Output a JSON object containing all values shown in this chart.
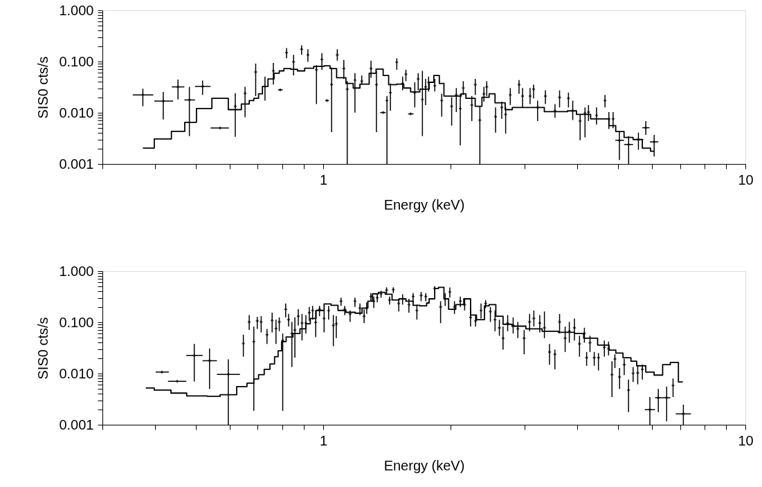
{
  "chart_data": [
    {
      "type": "scatter",
      "xlabel": "Energy (keV)",
      "ylabel": "SIS0 cts/s",
      "log": "xy",
      "grid": false,
      "xlim": [
        0.3,
        10
      ],
      "ylim": [
        0.001,
        1
      ],
      "xticks": [
        {
          "value": 0.3,
          "label": null
        },
        {
          "value": 0.4,
          "label": null
        },
        {
          "value": 0.5,
          "label": null
        },
        {
          "value": 0.6,
          "label": null
        },
        {
          "value": 0.7,
          "label": null
        },
        {
          "value": 0.8,
          "label": null
        },
        {
          "value": 0.9,
          "label": null
        },
        1,
        {
          "value": 2,
          "label": null
        },
        {
          "value": 3,
          "label": null
        },
        {
          "value": 4,
          "label": null
        },
        {
          "value": 5,
          "label": null
        },
        {
          "value": 6,
          "label": null
        },
        {
          "value": 7,
          "label": null
        },
        {
          "value": 8,
          "label": null
        },
        {
          "value": 9,
          "label": null
        },
        10
      ],
      "yticks": [
        {
          "value": 0.001,
          "label": "0.001"
        },
        {
          "value": 0.002,
          "label": null
        },
        {
          "value": 0.003,
          "label": null
        },
        {
          "value": 0.004,
          "label": null
        },
        {
          "value": 0.005,
          "label": null
        },
        {
          "value": 0.006,
          "label": null
        },
        {
          "value": 0.007,
          "label": null
        },
        {
          "value": 0.008,
          "label": null
        },
        {
          "value": 0.009,
          "label": null
        },
        {
          "value": 0.01,
          "label": "0.010"
        },
        {
          "value": 0.02,
          "label": null
        },
        {
          "value": 0.03,
          "label": null
        },
        {
          "value": 0.04,
          "label": null
        },
        {
          "value": 0.05,
          "label": null
        },
        {
          "value": 0.06,
          "label": null
        },
        {
          "value": 0.07,
          "label": null
        },
        {
          "value": 0.08,
          "label": null
        },
        {
          "value": 0.09,
          "label": null
        },
        {
          "value": 0.1,
          "label": "0.100"
        },
        {
          "value": 0.2,
          "label": null
        },
        {
          "value": 0.3,
          "label": null
        },
        {
          "value": 0.4,
          "label": null
        },
        {
          "value": 0.5,
          "label": null
        },
        {
          "value": 0.6,
          "label": null
        },
        {
          "value": 0.7,
          "label": null
        },
        {
          "value": 0.8,
          "label": null
        },
        {
          "value": 0.9,
          "label": null
        },
        {
          "value": 1,
          "label": "1.000"
        }
      ],
      "series": [
        {
          "type": "scatter",
          "color": "#000000",
          "marker": "cross",
          "x": [
            0.374,
            0.418,
            0.453,
            0.482,
            0.518,
            0.57,
            0.619,
            0.653,
            0.692,
            0.728,
            0.762,
            0.791,
            0.819,
            0.851,
            0.889,
            0.92,
            0.964,
            0.993,
            1.021,
            1.047,
            1.08,
            1.119,
            1.14,
            1.189,
            1.234,
            1.298,
            1.337,
            1.387,
            1.416,
            1.443,
            1.494,
            1.542,
            1.57,
            1.611,
            1.648,
            1.679,
            1.718,
            1.748,
            1.777,
            1.838,
            1.909,
            2.015,
            2.067,
            2.112,
            2.147,
            2.249,
            2.292,
            2.35,
            2.403,
            2.44,
            2.56,
            2.648,
            2.705,
            2.774,
            2.91,
            2.966,
            3.09,
            3.15,
            3.22,
            3.36,
            3.54,
            3.63,
            3.81,
            3.9,
            4.06,
            4.17,
            4.25,
            4.44,
            4.65,
            4.75,
            4.86,
            5.03,
            5.29,
            5.58,
            5.81,
            6.08
          ],
          "values": [
            0.0223,
            0.0169,
            0.032,
            0.0178,
            0.0327,
            0.00504,
            0.0134,
            0.024,
            0.0624,
            0.0327,
            0.0657,
            0.028,
            0.149,
            0.099,
            0.174,
            0.135,
            0.0692,
            0.11,
            0.0173,
            0.0355,
            0.135,
            0.0728,
            0.0289,
            0.0435,
            0.0414,
            0.0728,
            0.0355,
            0.0101,
            0.0173,
            0.0248,
            0.097,
            0.0373,
            0.0564,
            0.0095,
            0.0248,
            0.0458,
            0.0182,
            0.032,
            0.0393,
            0.0337,
            0.0173,
            0.0134,
            0.0223,
            0.0121,
            0.0304,
            0.0141,
            0.0355,
            0.0072,
            0.0235,
            0.032,
            0.0084,
            0.0127,
            0.0093,
            0.0223,
            0.0355,
            0.0212,
            0.0212,
            0.0289,
            0.0127,
            0.0212,
            0.0109,
            0.0201,
            0.0191,
            0.0109,
            0.0069,
            0.0098,
            0.0103,
            0.0089,
            0.0173,
            0.0076,
            0.0076,
            0.0029,
            0.0024,
            0.003,
            0.0051,
            0.0027
          ],
          "errors": [
            [
              0.0134,
              0.0295
            ],
            [
              0.0074,
              0.0255
            ],
            [
              0.0182,
              0.0445
            ],
            [
              0.0035,
              0.032
            ],
            [
              0.0223,
              0.0427
            ],
            null,
            [
              0.0034,
              0.024
            ],
            [
              0.0082,
              0.032
            ],
            [
              0.0212,
              0.0913
            ],
            [
              0.0173,
              0.0508
            ],
            [
              0.0355,
              0.0942
            ],
            null,
            [
              0.116,
              0.184
            ],
            [
              0.0535,
              0.135
            ],
            [
              0.135,
              0.207
            ],
            [
              0.099,
              0.174
            ],
            [
              0.0148,
              0.0849
            ],
            [
              0.0692,
              0.146
            ],
            null,
            [
              0.0042,
              0.0766
            ],
            [
              0.104,
              0.174
            ],
            [
              0.0458,
              0.1076
            ],
            [
              0.001,
              0.0414
            ],
            [
              0.0101,
              0.0593
            ],
            [
              0.0355,
              0.0535
            ],
            [
              0.0483,
              0.104
            ],
            [
              0.0042,
              0.0657
            ],
            null,
            [
              0.001,
              0.0212
            ],
            [
              0.0109,
              0.0373
            ],
            [
              0.0692,
              0.116
            ],
            [
              0.0274,
              0.0508
            ],
            [
              0.0414,
              0.0692
            ],
            null,
            [
              0.0127,
              0.0393
            ],
            [
              0.0274,
              0.0593
            ],
            [
              0.0035,
              0.0657
            ],
            [
              0.0141,
              0.0458
            ],
            [
              0.026,
              0.0508
            ],
            [
              0.026,
              0.0458
            ],
            [
              0.0084,
              0.0235
            ],
            [
              0.0056,
              0.0201
            ],
            [
              0.0103,
              0.0304
            ],
            [
              0.0023,
              0.0235
            ],
            [
              0.0223,
              0.0414
            ],
            [
              0.0069,
              0.0212
            ],
            [
              0.0223,
              0.0458
            ],
            [
              0.001,
              0.0134
            ],
            [
              0.0164,
              0.032
            ],
            [
              0.0212,
              0.0414
            ],
            [
              0.0041,
              0.0127
            ],
            [
              0.0076,
              0.0164
            ],
            [
              0.0039,
              0.0127
            ],
            [
              0.0141,
              0.0304
            ],
            [
              0.0235,
              0.0435
            ],
            [
              0.0127,
              0.0304
            ],
            [
              0.0148,
              0.0304
            ],
            [
              0.0191,
              0.0355
            ],
            [
              0.0069,
              0.0173
            ],
            [
              0.0148,
              0.0274
            ],
            [
              0.008,
              0.0148
            ],
            [
              0.0127,
              0.0274
            ],
            [
              0.0127,
              0.0248
            ],
            [
              0.0072,
              0.0173
            ],
            [
              0.0029,
              0.0093
            ],
            [
              0.0033,
              0.0127
            ],
            [
              0.0069,
              0.0141
            ],
            [
              0.0059,
              0.0127
            ],
            [
              0.0127,
              0.0223
            ],
            [
              0.0048,
              0.0103
            ],
            [
              0.005,
              0.0103
            ],
            [
              0.0012,
              0.0043
            ],
            [
              0.001,
              0.0035
            ],
            [
              0.0019,
              0.0041
            ],
            [
              0.0037,
              0.0069
            ],
            [
              0.0014,
              0.0037
            ]
          ],
          "xerrors": [
            [
              0.354,
              0.396
            ],
            [
              0.398,
              0.441
            ],
            [
              0.438,
              0.469
            ],
            [
              0.469,
              0.497
            ],
            [
              0.497,
              0.541
            ],
            [
              0.541,
              0.598
            ],
            null,
            null,
            null,
            null,
            null,
            [
              0.782,
              0.802
            ],
            null,
            null,
            null,
            null,
            null,
            null,
            [
              1.012,
              1.031
            ],
            null,
            null,
            null,
            null,
            null,
            null,
            null,
            null,
            [
              1.365,
              1.406
            ],
            null,
            null,
            null,
            null,
            null,
            [
              1.589,
              1.637
            ],
            null,
            null,
            null,
            null,
            null,
            null,
            null,
            null,
            null,
            null,
            null,
            null,
            null,
            null,
            null,
            null,
            null,
            null,
            null,
            null,
            null,
            null,
            null,
            null,
            null,
            null,
            null,
            null,
            null,
            null,
            null,
            null,
            null,
            null,
            null,
            null,
            null,
            [
              4.92,
              5.16
            ],
            [
              5.16,
              5.42
            ],
            [
              5.42,
              5.73
            ],
            [
              5.7,
              5.93
            ],
            [
              5.94,
              6.22
            ]
          ]
        },
        {
          "type": "step",
          "color": "#000000",
          "marker": "none",
          "x": [
            0.374,
            0.398,
            0.437,
            0.47,
            0.501,
            0.545,
            0.596,
            0.64,
            0.668,
            0.685,
            0.703,
            0.718,
            0.74,
            0.765,
            0.787,
            0.807,
            0.838,
            0.869,
            0.904,
            0.95,
            1.005,
            1.038,
            1.076,
            1.132,
            1.178,
            1.222,
            1.285,
            1.334,
            1.387,
            1.429,
            1.494,
            1.552,
            1.611,
            1.694,
            1.782,
            1.828,
            1.884,
            1.932,
            2.123,
            2.178,
            2.291,
            2.377,
            2.472,
            2.553,
            2.698,
            2.805,
            3.34,
            3.79,
            3.98,
            4.3,
            4.75,
            4.93,
            5.16,
            5.42,
            5.7,
            5.96,
            6.08
          ],
          "values": [
            0.00204,
            0.00308,
            0.00432,
            0.00651,
            0.0121,
            0.0191,
            0.0115,
            0.0148,
            0.0173,
            0.0191,
            0.0235,
            0.0327,
            0.0458,
            0.0593,
            0.0657,
            0.0728,
            0.0706,
            0.0657,
            0.0743,
            0.0807,
            0.0824,
            0.0728,
            0.0483,
            0.0373,
            0.0304,
            0.0362,
            0.0593,
            0.0713,
            0.0535,
            0.0355,
            0.0362,
            0.0304,
            0.0255,
            0.0289,
            0.0393,
            0.0535,
            0.0373,
            0.0212,
            0.0235,
            0.0191,
            0.0134,
            0.0201,
            0.0235,
            0.0156,
            0.0115,
            0.0127,
            0.0105,
            0.0109,
            0.0093,
            0.0076,
            0.0056,
            0.0043,
            0.0033,
            0.003,
            0.00204,
            0.00177,
            0.00177
          ]
        }
      ]
    },
    {
      "type": "scatter",
      "xlabel": "Energy (keV)",
      "ylabel": "SIS0 cts/s",
      "log": "xy",
      "grid": false,
      "xlim": [
        0.3,
        10
      ],
      "ylim": [
        0.001,
        1
      ],
      "xticks": [
        {
          "value": 0.3,
          "label": null
        },
        {
          "value": 0.4,
          "label": null
        },
        {
          "value": 0.5,
          "label": null
        },
        {
          "value": 0.6,
          "label": null
        },
        {
          "value": 0.7,
          "label": null
        },
        {
          "value": 0.8,
          "label": null
        },
        {
          "value": 0.9,
          "label": null
        },
        1,
        {
          "value": 2,
          "label": null
        },
        {
          "value": 3,
          "label": null
        },
        {
          "value": 4,
          "label": null
        },
        {
          "value": 5,
          "label": null
        },
        {
          "value": 6,
          "label": null
        },
        {
          "value": 7,
          "label": null
        },
        {
          "value": 8,
          "label": null
        },
        {
          "value": 9,
          "label": null
        },
        10
      ],
      "yticks": [
        {
          "value": 0.001,
          "label": "0.001"
        },
        {
          "value": 0.002,
          "label": null
        },
        {
          "value": 0.003,
          "label": null
        },
        {
          "value": 0.004,
          "label": null
        },
        {
          "value": 0.005,
          "label": null
        },
        {
          "value": 0.006,
          "label": null
        },
        {
          "value": 0.007,
          "label": null
        },
        {
          "value": 0.008,
          "label": null
        },
        {
          "value": 0.009,
          "label": null
        },
        {
          "value": 0.01,
          "label": "0.010"
        },
        {
          "value": 0.02,
          "label": null
        },
        {
          "value": 0.03,
          "label": null
        },
        {
          "value": 0.04,
          "label": null
        },
        {
          "value": 0.05,
          "label": null
        },
        {
          "value": 0.06,
          "label": null
        },
        {
          "value": 0.07,
          "label": null
        },
        {
          "value": 0.08,
          "label": null
        },
        {
          "value": 0.09,
          "label": null
        },
        {
          "value": 0.1,
          "label": "0.100"
        },
        {
          "value": 0.2,
          "label": null
        },
        {
          "value": 0.3,
          "label": null
        },
        {
          "value": 0.4,
          "label": null
        },
        {
          "value": 0.5,
          "label": null
        },
        {
          "value": 0.6,
          "label": null
        },
        {
          "value": 0.7,
          "label": null
        },
        {
          "value": 0.8,
          "label": null
        },
        {
          "value": 0.9,
          "label": null
        },
        {
          "value": 1,
          "label": "1.000"
        }
      ],
      "series": [
        {
          "type": "scatter",
          "color": "#000000",
          "marker": "cross",
          "x": [
            0.415,
            0.451,
            0.495,
            0.538,
            0.596,
            0.647,
            0.668,
            0.685,
            0.698,
            0.713,
            0.736,
            0.757,
            0.773,
            0.787,
            0.802,
            0.815,
            0.828,
            0.843,
            0.857,
            0.873,
            0.891,
            0.91,
            0.927,
            0.944,
            0.96,
            0.98,
            1.005,
            1.03,
            1.057,
            1.074,
            1.102,
            1.125,
            1.158,
            1.189,
            1.222,
            1.25,
            1.268,
            1.297,
            1.318,
            1.343,
            1.371,
            1.413,
            1.436,
            1.466,
            1.51,
            1.542,
            1.596,
            1.633,
            1.667,
            1.706,
            1.75,
            1.837,
            1.897,
            1.945,
            1.995,
            2.046,
            2.113,
            2.163,
            2.234,
            2.296,
            2.365,
            2.425,
            2.489,
            2.553,
            2.614,
            2.667,
            2.735,
            2.818,
            2.891,
            2.992,
            3.083,
            3.155,
            3.258,
            3.342,
            3.436,
            3.538,
            3.63,
            3.742,
            3.828,
            3.936,
            4.047,
            4.156,
            4.207,
            4.285,
            4.385,
            4.487,
            4.634,
            4.742,
            4.831,
            4.909,
            5.035,
            5.164,
            5.287,
            5.42,
            5.559,
            5.701,
            5.94,
            6.22,
            6.51,
            6.74,
            7.13
          ],
          "values": [
            0.0107,
            0.00705,
            0.0226,
            0.0178,
            0.00964,
            0.0387,
            0.102,
            0.0421,
            0.107,
            0.102,
            0.0575,
            0.109,
            0.076,
            0.102,
            0.0443,
            0.18,
            0.113,
            0.0605,
            0.0708,
            0.132,
            0.0966,
            0.0966,
            0.154,
            0.171,
            0.0998,
            0.18,
            0.119,
            0.171,
            0.0871,
            0.0937,
            0.259,
            0.18,
            0.146,
            0.259,
            0.19,
            0.132,
            0.19,
            0.319,
            0.259,
            0.303,
            0.361,
            0.427,
            0.273,
            0.436,
            0.234,
            0.288,
            0.222,
            0.319,
            0.171,
            0.336,
            0.319,
            0.459,
            0.2,
            0.288,
            0.393,
            0.2,
            0.259,
            0.222,
            0.125,
            0.107,
            0.171,
            0.234,
            0.163,
            0.113,
            0.0785,
            0.0492,
            0.0966,
            0.0871,
            0.0745,
            0.0492,
            0.102,
            0.119,
            0.0966,
            0.0785,
            0.0264,
            0.0238,
            0.102,
            0.0492,
            0.0672,
            0.0785,
            0.0379,
            0.0605,
            0.0204,
            0.04,
            0.0204,
            0.0204,
            0.0325,
            0.0308,
            0.00953,
            0.0193,
            0.00859,
            0.0149,
            0.00475,
            0.0101,
            0.0103,
            0.0121,
            0.00197,
            0.00337,
            0.00337,
            0.00585,
            0.00163
          ],
          "errors": [
            null,
            null,
            [
              0.00698,
              0.0379
            ],
            [
              0.005,
              0.0308
            ],
            [
              0.001,
              0.0189
            ],
            [
              0.0214,
              0.0575
            ],
            [
              0.0708,
              0.139
            ],
            [
              0.00187,
              0.0827
            ],
            [
              0.0745,
              0.128
            ],
            [
              0.0638,
              0.132
            ],
            [
              0.0379,
              0.0745
            ],
            [
              0.0638,
              0.154
            ],
            [
              0.0379,
              0.113
            ],
            [
              0.0672,
              0.125
            ],
            [
              0.00187,
              0.0605
            ],
            [
              0.125,
              0.234
            ],
            [
              0.0827,
              0.146
            ],
            [
              0.0134,
              0.102
            ],
            [
              0.0204,
              0.125
            ],
            [
              0.0871,
              0.18
            ],
            [
              0.0443,
              0.146
            ],
            [
              0.0605,
              0.139
            ],
            [
              0.107,
              0.2
            ],
            [
              0.113,
              0.21
            ],
            [
              0.0518,
              0.171
            ],
            [
              0.132,
              0.21
            ],
            [
              0.0638,
              0.171
            ],
            [
              0.113,
              0.21
            ],
            [
              0.0342,
              0.139
            ],
            [
              0.0492,
              0.132
            ],
            [
              0.21,
              0.303
            ],
            [
              0.139,
              0.21
            ],
            [
              0.102,
              0.171
            ],
            [
              0.2,
              0.303
            ],
            [
              0.139,
              0.234
            ],
            [
              0.0966,
              0.18
            ],
            [
              0.146,
              0.246
            ],
            [
              0.259,
              0.373
            ],
            [
              0.19,
              0.319
            ],
            [
              0.246,
              0.354
            ],
            [
              0.303,
              0.414
            ],
            [
              0.354,
              0.483
            ],
            [
              0.222,
              0.319
            ],
            [
              0.373,
              0.483
            ],
            [
              0.163,
              0.288
            ],
            [
              0.222,
              0.354
            ],
            [
              0.154,
              0.288
            ],
            [
              0.246,
              0.373
            ],
            [
              0.113,
              0.222
            ],
            [
              0.259,
              0.393
            ],
            [
              0.259,
              0.373
            ],
            [
              0.393,
              0.509
            ],
            [
              0.0966,
              0.259
            ],
            [
              0.21,
              0.373
            ],
            [
              0.303,
              0.483
            ],
            [
              0.146,
              0.259
            ],
            [
              0.2,
              0.319
            ],
            [
              0.171,
              0.288
            ],
            [
              0.0827,
              0.19
            ],
            [
              0.0827,
              0.139
            ],
            [
              0.119,
              0.234
            ],
            [
              0.19,
              0.273
            ],
            [
              0.102,
              0.2
            ],
            [
              0.0672,
              0.171
            ],
            [
              0.0546,
              0.113
            ],
            [
              0.0293,
              0.0827
            ],
            [
              0.0672,
              0.139
            ],
            [
              0.0605,
              0.125
            ],
            [
              0.0492,
              0.102
            ],
            [
              0.0238,
              0.0708
            ],
            [
              0.0672,
              0.146
            ],
            [
              0.0827,
              0.171
            ],
            [
              0.0638,
              0.139
            ],
            [
              0.0492,
              0.163
            ],
            [
              0.0149,
              0.0379
            ],
            [
              0.0121,
              0.0293
            ],
            [
              0.0605,
              0.146
            ],
            [
              0.0264,
              0.0827
            ],
            [
              0.04,
              0.102
            ],
            [
              0.0443,
              0.119
            ],
            [
              0.0214,
              0.0546
            ],
            [
              0.04,
              0.0785
            ],
            [
              0.0142,
              0.0264
            ],
            [
              0.0264,
              0.0546
            ],
            [
              0.0142,
              0.0264
            ],
            [
              0.0115,
              0.0251
            ],
            [
              0.0214,
              0.0443
            ],
            [
              0.0226,
              0.0421
            ],
            [
              0.00348,
              0.0174
            ],
            [
              0.0128,
              0.0238
            ],
            [
              0.005,
              0.0128
            ],
            [
              0.00933,
              0.0193
            ],
            [
              0.00177,
              0.00759
            ],
            [
              0.00684,
              0.0134
            ],
            [
              0.00617,
              0.0142
            ],
            [
              0.00759,
              0.0149
            ],
            [
              0.001,
              0.00348
            ],
            [
              0.00177,
              0.005
            ],
            [
              0.00117,
              0.00556
            ],
            [
              0.00348,
              0.008
            ],
            [
              0.001,
              0.00247
            ]
          ],
          "xerrors": [
            [
              0.401,
              0.431
            ],
            [
              0.429,
              0.474
            ],
            [
              0.474,
              0.518
            ],
            [
              0.518,
              0.56
            ],
            [
              0.56,
              0.635
            ],
            null,
            null,
            null,
            null,
            null,
            null,
            null,
            null,
            null,
            null,
            null,
            null,
            null,
            null,
            null,
            null,
            null,
            null,
            null,
            null,
            null,
            null,
            null,
            null,
            null,
            null,
            null,
            null,
            null,
            null,
            null,
            null,
            null,
            null,
            null,
            null,
            null,
            null,
            null,
            null,
            null,
            null,
            null,
            null,
            null,
            null,
            null,
            null,
            null,
            null,
            null,
            null,
            null,
            null,
            null,
            null,
            null,
            null,
            null,
            null,
            null,
            null,
            null,
            null,
            null,
            null,
            null,
            null,
            null,
            null,
            null,
            null,
            null,
            null,
            null,
            null,
            null,
            null,
            null,
            null,
            null,
            null,
            null,
            null,
            null,
            null,
            null,
            null,
            null,
            null,
            null,
            [
              5.78,
              6.11
            ],
            [
              6.11,
              6.38
            ],
            [
              6.38,
              6.64
            ],
            null,
            [
              6.84,
              7.43
            ]
          ]
        },
        {
          "type": "step",
          "color": "#000000",
          "marker": "none",
          "x": [
            0.38,
            0.398,
            0.436,
            0.475,
            0.532,
            0.57,
            0.624,
            0.66,
            0.685,
            0.703,
            0.725,
            0.748,
            0.767,
            0.782,
            0.797,
            0.817,
            0.848,
            0.881,
            0.91,
            0.932,
            0.962,
            1.005,
            1.044,
            1.084,
            1.132,
            1.191,
            1.236,
            1.276,
            1.309,
            1.352,
            1.403,
            1.456,
            1.513,
            1.57,
            1.633,
            1.694,
            1.758,
            1.782,
            1.837,
            1.875,
            1.932,
            1.982,
            2.061,
            2.153,
            2.234,
            2.307,
            2.41,
            2.472,
            2.564,
            2.667,
            2.8,
            3.02,
            3.3,
            3.606,
            3.936,
            4.14,
            4.467,
            4.753,
            4.933,
            5.129,
            5.358,
            5.528,
            5.808,
            6.078,
            6.368,
            6.64,
            6.94,
            7.11
          ],
          "values": [
            0.00522,
            0.00475,
            0.00415,
            0.00366,
            0.00359,
            0.00386,
            0.00556,
            0.00649,
            0.00783,
            0.00953,
            0.0121,
            0.0154,
            0.0214,
            0.0278,
            0.0421,
            0.0518,
            0.0605,
            0.0745,
            0.0937,
            0.119,
            0.171,
            0.229,
            0.215,
            0.171,
            0.157,
            0.151,
            0.19,
            0.259,
            0.361,
            0.385,
            0.354,
            0.273,
            0.288,
            0.259,
            0.215,
            0.21,
            0.239,
            0.288,
            0.459,
            0.483,
            0.288,
            0.18,
            0.222,
            0.288,
            0.139,
            0.113,
            0.21,
            0.222,
            0.132,
            0.0918,
            0.0843,
            0.0745,
            0.0672,
            0.0638,
            0.0605,
            0.0492,
            0.036,
            0.0287,
            0.0251,
            0.0204,
            0.0174,
            0.0142,
            0.0107,
            0.00933,
            0.0149,
            0.0165,
            0.00684,
            0.00684
          ]
        }
      ]
    }
  ]
}
